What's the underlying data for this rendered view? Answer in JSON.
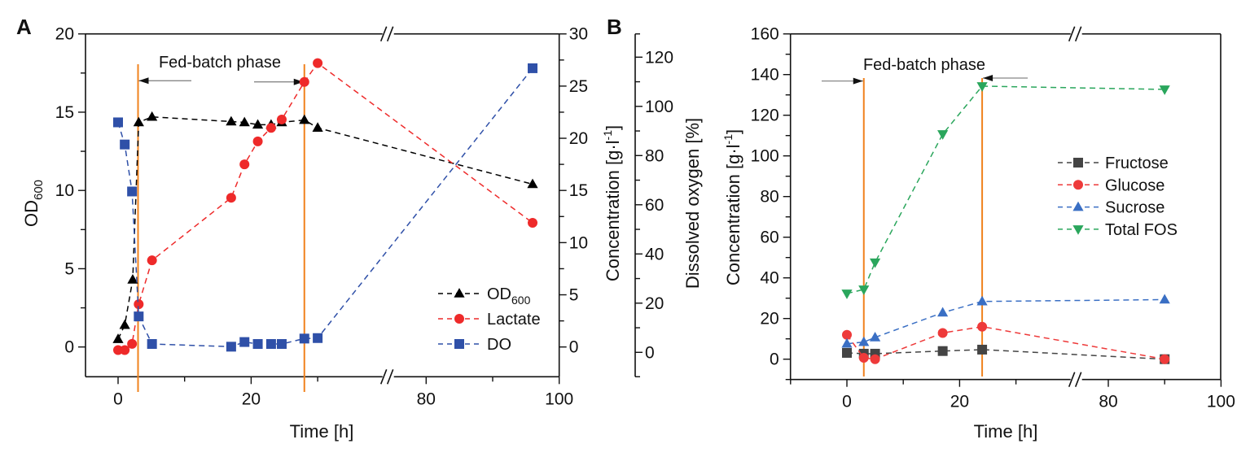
{
  "chart_data": [
    {
      "panel": "A",
      "type": "line",
      "xlabel": "Time [h]",
      "x_ticks": [
        "0",
        "20",
        "80",
        "100"
      ],
      "x_tick_values": [
        0,
        20,
        80,
        100
      ],
      "x_segments": [
        [
          -4.9,
          40.6
        ],
        [
          74.3,
          100
        ]
      ],
      "y_left": {
        "label_main": "OD",
        "label_sub": "600",
        "range": [
          -1.9,
          20
        ],
        "ticks": [
          "0",
          "5",
          "10",
          "15",
          "20"
        ],
        "tick_values": [
          0,
          5,
          10,
          15,
          20
        ]
      },
      "y_right": {
        "label_main": "Concentration [g·l",
        "label_sup": "-1",
        "label_end": "]",
        "range": [
          -2.85,
          30
        ],
        "ticks": [
          "0",
          "5",
          "10",
          "15",
          "20",
          "25",
          "30"
        ],
        "tick_values": [
          0,
          5,
          10,
          15,
          20,
          25,
          30
        ]
      },
      "y_right2": {
        "label": "Dissolved oxygen [%]",
        "range": [
          -9.9,
          129.5
        ],
        "ticks": [
          "0",
          "20",
          "40",
          "60",
          "80",
          "100",
          "120"
        ],
        "tick_values": [
          0,
          20,
          40,
          60,
          80,
          100,
          120
        ]
      },
      "annotation": {
        "text": "Fed-batch phase",
        "phase_start": 3.0,
        "phase_end": 28.0
      },
      "legend_position": "bottom-right",
      "series": [
        {
          "name": "OD",
          "name_sub": "600",
          "axis": "left",
          "marker": "triangle-up",
          "color": "#000000",
          "x": [
            0,
            1,
            2.2,
            3.1,
            5.1,
            17,
            19,
            21,
            23,
            24.6,
            28,
            30,
            96
          ],
          "y": [
            0.5,
            1.4,
            4.3,
            14.35,
            14.7,
            14.4,
            14.35,
            14.2,
            14.2,
            14.35,
            14.5,
            14.0,
            10.4
          ]
        },
        {
          "name": "Lactate",
          "axis": "right",
          "marker": "circle",
          "color": "#ee2a2a",
          "x": [
            0,
            1,
            2.1,
            3.1,
            5.1,
            17,
            19,
            21,
            23,
            24.6,
            28,
            30,
            96
          ],
          "y": [
            -0.3,
            -0.3,
            0.3,
            4.1,
            8.3,
            14.3,
            17.5,
            19.7,
            21.0,
            21.8,
            25.4,
            27.2,
            11.9
          ]
        },
        {
          "name": "DO",
          "axis": "right2",
          "marker": "square",
          "color": "#2f50a8",
          "x": [
            0,
            1,
            2.1,
            3.1,
            5.1,
            17,
            19,
            21,
            23,
            24.6,
            28,
            30,
            96
          ],
          "y": [
            93.5,
            84.5,
            65.4,
            14.6,
            3.4,
            2.3,
            4.2,
            3.4,
            3.4,
            3.4,
            5.6,
            5.8,
            115.5
          ]
        }
      ]
    },
    {
      "panel": "B",
      "type": "line",
      "xlabel": "Time [h]",
      "x_ticks": [
        "0",
        "20",
        "80",
        "100"
      ],
      "x_tick_values": [
        0,
        20,
        80,
        100
      ],
      "x_segments": [
        [
          -10,
          40.7
        ],
        [
          74.3,
          100
        ]
      ],
      "y_left": {
        "label_main": "Concentration [g·l",
        "label_sup": "-1",
        "label_end": "]",
        "range": [
          -10,
          160
        ],
        "ticks": [
          "0",
          "20",
          "40",
          "60",
          "80",
          "100",
          "120",
          "140",
          "160"
        ],
        "tick_values": [
          0,
          20,
          40,
          60,
          80,
          100,
          120,
          140,
          160
        ]
      },
      "annotation": {
        "text": "Fed-batch phase",
        "phase_start": 3.0,
        "phase_end": 24.0
      },
      "legend_position": "right",
      "series": [
        {
          "name": "Fructose",
          "marker": "square",
          "color": "#444444",
          "x": [
            0,
            3,
            5,
            17,
            24,
            90
          ],
          "y": [
            3.1,
            2.7,
            2.7,
            4.0,
            4.7,
            0
          ]
        },
        {
          "name": "Glucose",
          "marker": "circle",
          "color": "#ee3a3a",
          "x": [
            0,
            3,
            5,
            17,
            24,
            90
          ],
          "y": [
            12.0,
            0.7,
            0,
            12.9,
            16.0,
            0
          ]
        },
        {
          "name": "Sucrose",
          "marker": "triangle-up",
          "color": "#3a6fc4",
          "x": [
            0,
            3,
            5,
            17,
            24,
            90
          ],
          "y": [
            7.6,
            8.4,
            10.7,
            22.9,
            28.4,
            29.3
          ]
        },
        {
          "name": "Total FOS",
          "marker": "triangle-down",
          "color": "#2aa65c",
          "x": [
            0,
            3,
            5,
            17,
            24,
            90
          ],
          "y": [
            32.3,
            34.3,
            47.6,
            110.7,
            134.3,
            132.7
          ]
        }
      ]
    }
  ],
  "accent_phase_line_color": "#f0821e"
}
